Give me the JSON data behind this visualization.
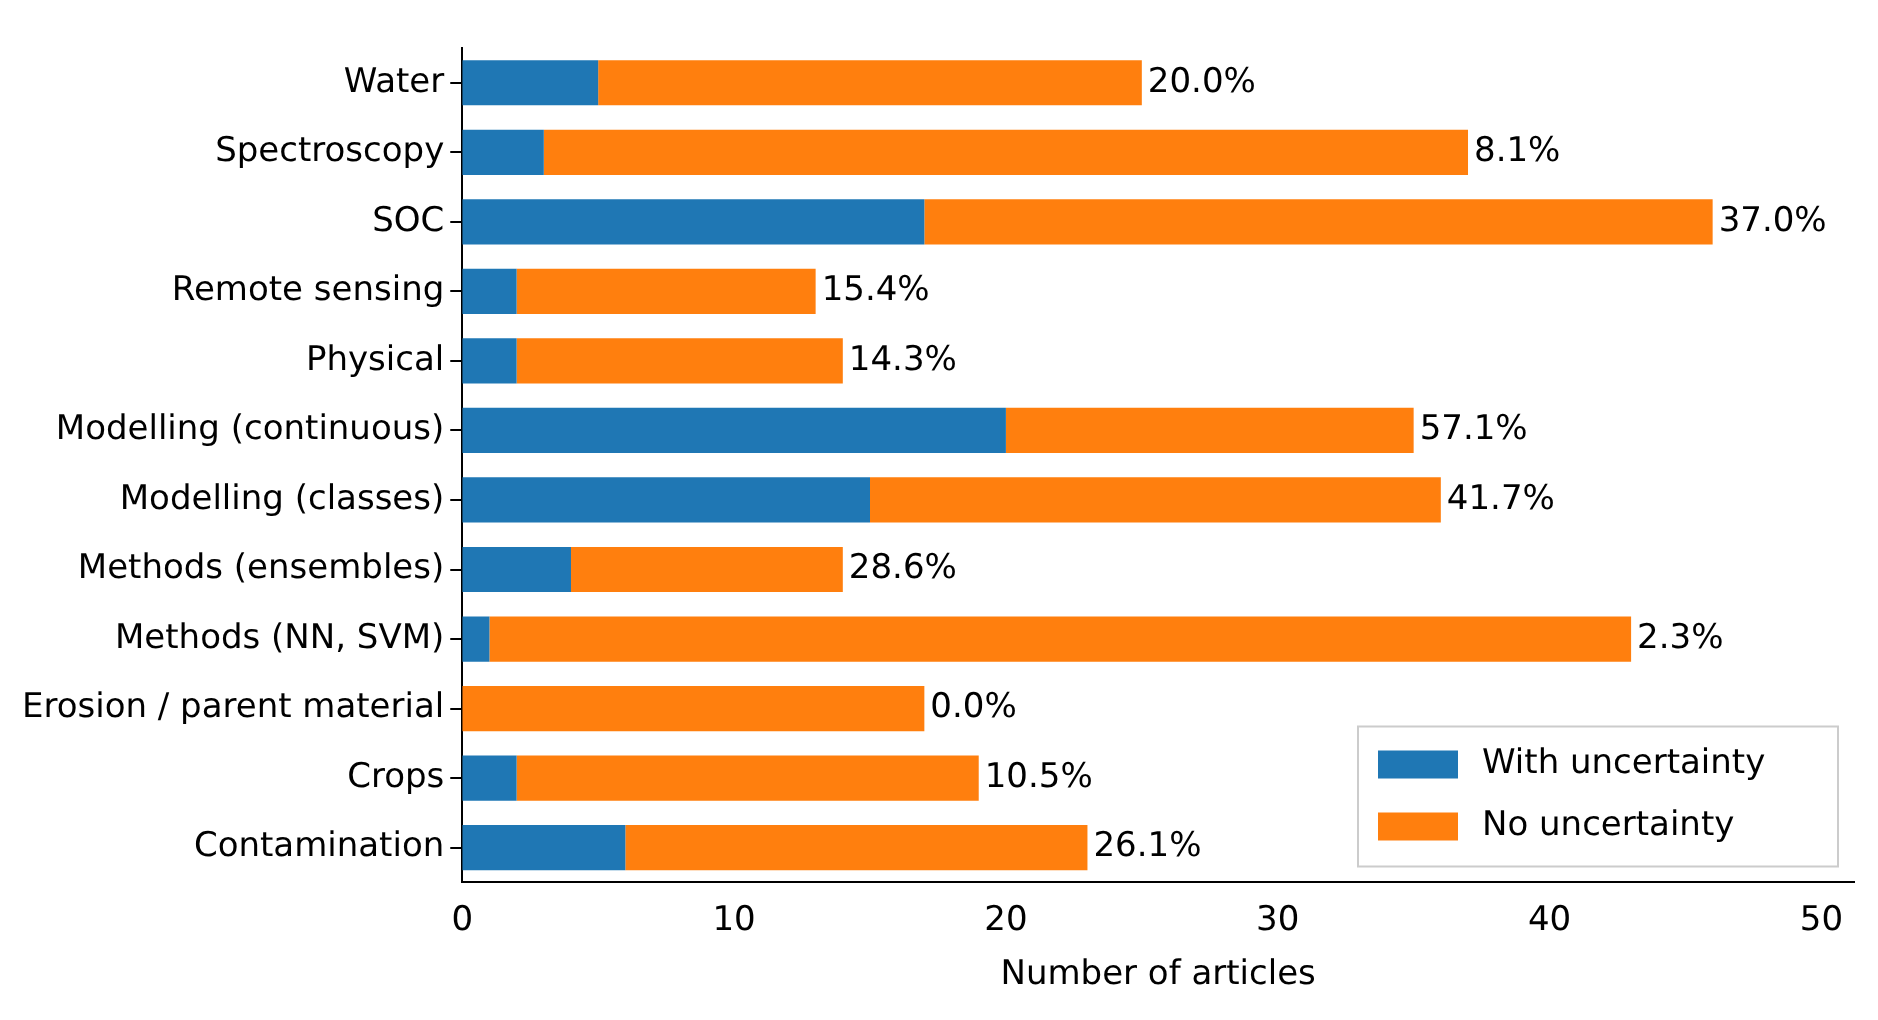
{
  "chart_data": {
    "type": "bar",
    "orientation": "horizontal",
    "stacked": true,
    "xlabel": "Number of articles",
    "categories": [
      "Water",
      "Spectroscopy",
      "SOC",
      "Remote sensing",
      "Physical",
      "Modelling (continuous)",
      "Modelling (classes)",
      "Methods (ensembles)",
      "Methods (NN, SVM)",
      "Erosion / parent material",
      "Crops",
      "Contamination"
    ],
    "series": [
      {
        "name": "With uncertainty",
        "color": "#1f77b4",
        "values": [
          5,
          3,
          17,
          2,
          2,
          20,
          15,
          4,
          1,
          0,
          2,
          6
        ]
      },
      {
        "name": "No uncertainty",
        "color": "#ff7f0e",
        "values": [
          20,
          34,
          29,
          11,
          12,
          15,
          21,
          10,
          42,
          17,
          17,
          17
        ]
      }
    ],
    "annotations": [
      {
        "text": "20.0%",
        "x": 25,
        "y": "Water"
      },
      {
        "text": "8.1%",
        "x": 37,
        "y": "Spectroscopy"
      },
      {
        "text": "37.0%",
        "x": 46,
        "y": "SOC"
      },
      {
        "text": "15.4%",
        "x": 13,
        "y": "Remote sensing"
      },
      {
        "text": "14.3%",
        "x": 14,
        "y": "Physical"
      },
      {
        "text": "57.1%",
        "x": 35,
        "y": "Modelling (continuous)"
      },
      {
        "text": "41.7%",
        "x": 36,
        "y": "Modelling (classes)"
      },
      {
        "text": "28.6%",
        "x": 14,
        "y": "Methods (ensembles)"
      },
      {
        "text": "2.3%",
        "x": 43,
        "y": "Methods (NN, SVM)"
      },
      {
        "text": "0.0%",
        "x": 17,
        "y": "Erosion / parent material"
      },
      {
        "text": "10.5%",
        "x": 19,
        "y": "Crops"
      },
      {
        "text": "26.1%",
        "x": 23,
        "y": "Contamination"
      }
    ],
    "xlim": [
      0,
      51.2
    ],
    "xticks": [
      0,
      10,
      20,
      30,
      40,
      50
    ],
    "grid": false,
    "legend": "bottom right"
  }
}
